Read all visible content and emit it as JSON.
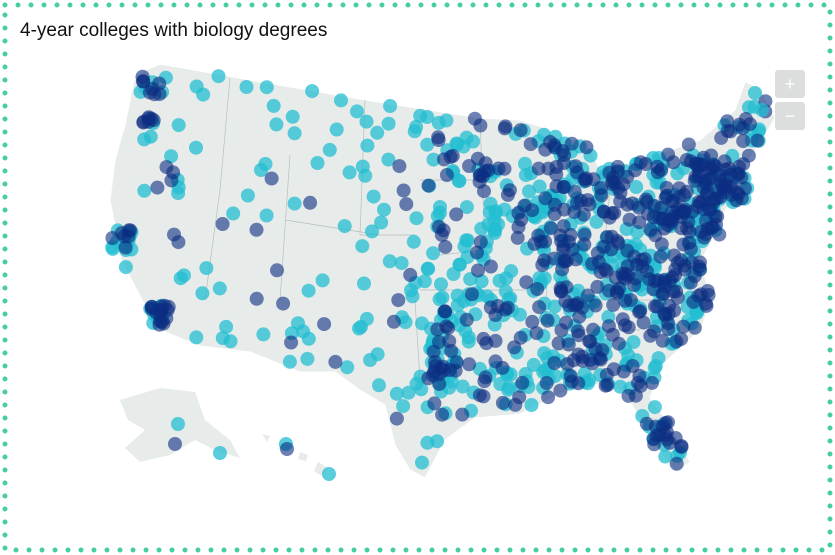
{
  "title": "4-year colleges with biology degrees",
  "zoom_controls": {
    "zoom_in": "+",
    "zoom_out": "−"
  }
}
